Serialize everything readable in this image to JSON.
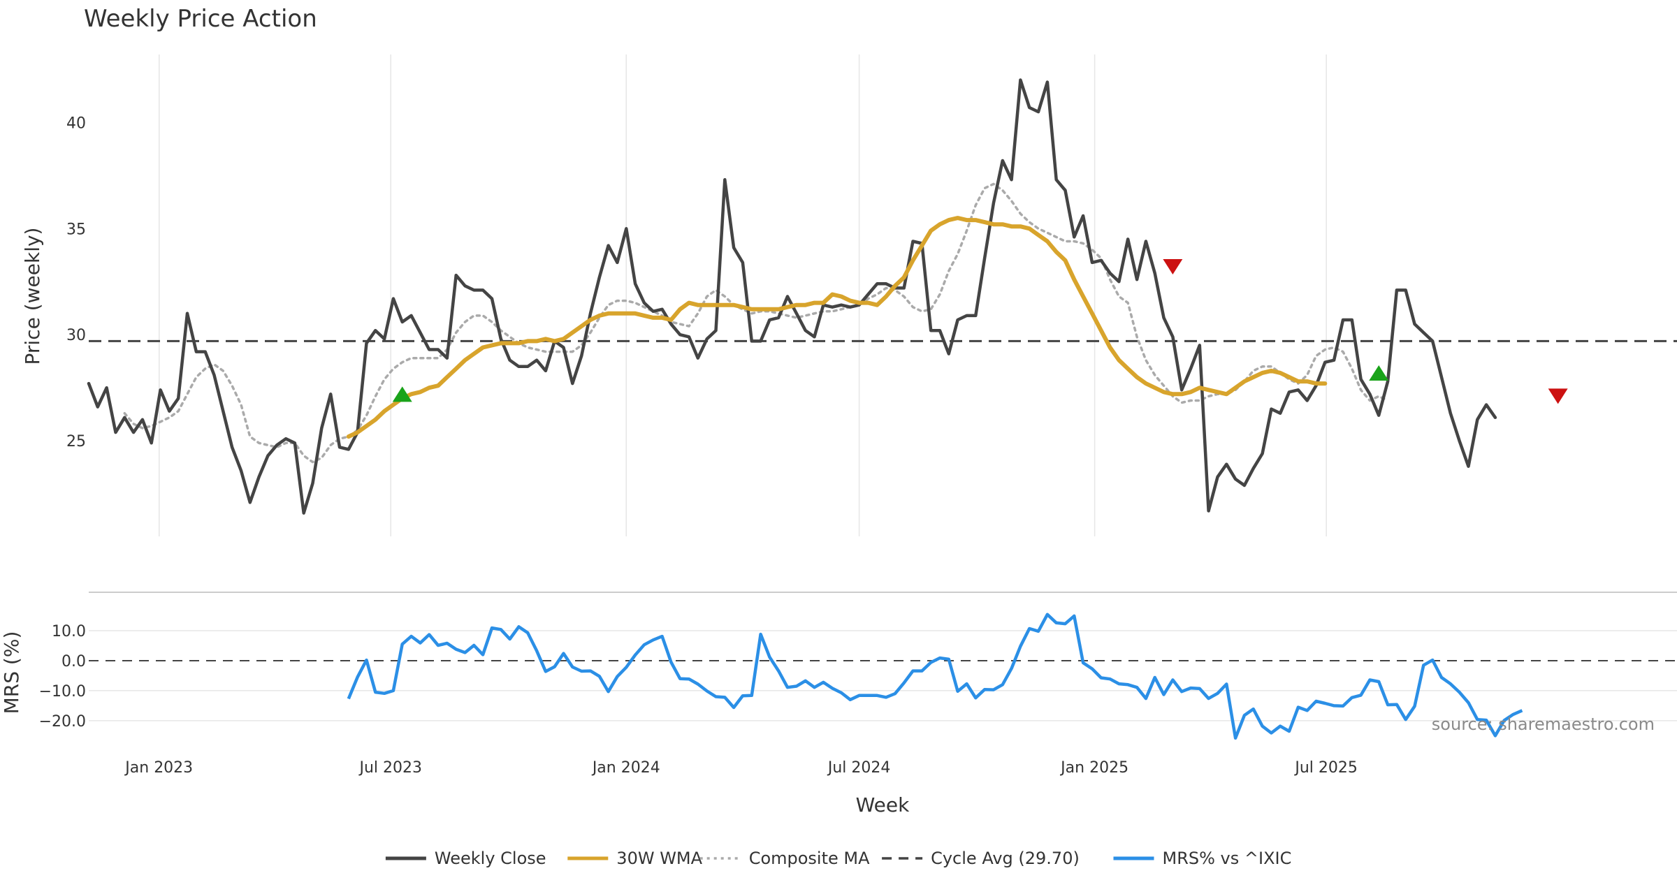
{
  "chart_data": {
    "type": "line",
    "title": "Weekly Price Action",
    "xlabel": "Week",
    "ylabel": "Price (weekly)",
    "ylabel2": "MRS (%)",
    "x_start": "2022-11-07",
    "x_step_days": 7,
    "x_range": [
      "2022-11-07",
      "2026-04-01"
    ],
    "x_ticks": [
      {
        "date": "2023-01-01",
        "label": "Jan 2023"
      },
      {
        "date": "2023-07-01",
        "label": "Jul 2023"
      },
      {
        "date": "2024-01-01",
        "label": "Jan 2024"
      },
      {
        "date": "2024-07-01",
        "label": "Jul 2024"
      },
      {
        "date": "2025-01-01",
        "label": "Jan 2025"
      },
      {
        "date": "2025-07-01",
        "label": "Jul 2025"
      }
    ],
    "ylim": [
      20.5,
      43.2
    ],
    "y_ticks": [
      25,
      30,
      35,
      40
    ],
    "ylim2": [
      -27,
      20
    ],
    "y2_ticks": [
      {
        "value": 10,
        "label": "10.0"
      },
      {
        "value": 0,
        "label": "0.0"
      },
      {
        "value": -10,
        "label": "−10.0"
      },
      {
        "value": -20,
        "label": "−20.0"
      }
    ],
    "cycle_avg": 29.7,
    "source": "source: sharemaestro.com",
    "legend": [
      {
        "label": "Weekly Close",
        "style": "solid",
        "color": "#444444"
      },
      {
        "label": "30W WMA",
        "style": "solid",
        "color": "#d8a42c"
      },
      {
        "label": "Composite MA",
        "style": "dotted",
        "color": "#aaaaaa"
      },
      {
        "label": "Cycle Avg (29.70)",
        "style": "dashed",
        "color": "#444444"
      },
      {
        "label": "MRS% vs ^IXIC",
        "style": "solid",
        "color": "#2b8fe6"
      }
    ],
    "colors": {
      "close": "#444444",
      "wma": "#d8a42c",
      "composite": "#aaaaaa",
      "mrs": "#2b8fe6",
      "buy": "#1aa31a",
      "sell": "#cc1111",
      "grid": "#e6e6e6"
    },
    "series": [
      {
        "name": "Weekly Close",
        "start_index": 0,
        "values": [
          27.7,
          26.6,
          27.5,
          25.4,
          26.1,
          25.4,
          26.0,
          24.9,
          27.4,
          26.4,
          27.0,
          31.0,
          29.2,
          29.2,
          28.1,
          26.4,
          24.7,
          23.6,
          22.1,
          23.3,
          24.3,
          24.8,
          25.1,
          24.9,
          21.6,
          23.0,
          25.6,
          27.2,
          24.7,
          24.6,
          25.4,
          29.6,
          30.2,
          29.8,
          31.7,
          30.6,
          30.9,
          30.1,
          29.3,
          29.3,
          28.9,
          32.8,
          32.3,
          32.1,
          32.1,
          31.7,
          29.8,
          28.8,
          28.5,
          28.5,
          28.8,
          28.3,
          29.7,
          29.4,
          27.7,
          29.0,
          31.0,
          32.7,
          34.2,
          33.4,
          35.0,
          32.4,
          31.5,
          31.1,
          31.2,
          30.5,
          30.0,
          29.9,
          28.9,
          29.8,
          30.2,
          37.3,
          34.1,
          33.4,
          29.7,
          29.7,
          30.7,
          30.8,
          31.8,
          31.0,
          30.2,
          29.9,
          31.4,
          31.3,
          31.4,
          31.3,
          31.4,
          31.9,
          32.4,
          32.4,
          32.2,
          32.2,
          34.4,
          34.3,
          30.2,
          30.2,
          29.1,
          30.7,
          30.9,
          30.9,
          33.6,
          36.2,
          38.2,
          37.3,
          42.0,
          40.7,
          40.5,
          41.9,
          37.3,
          36.8,
          34.6,
          35.6,
          33.4,
          33.5,
          32.9,
          32.5,
          34.5,
          32.6,
          34.4,
          32.9,
          30.8,
          29.9,
          27.4,
          28.4,
          29.5,
          21.7,
          23.3,
          23.9,
          23.2,
          22.9,
          23.7,
          24.4,
          26.5,
          26.3,
          27.3,
          27.4,
          26.9,
          27.6,
          28.7,
          28.8,
          30.7,
          30.7,
          27.9,
          27.2,
          26.2,
          27.8,
          32.1,
          32.1,
          30.5,
          30.1,
          29.7,
          28.0,
          26.3,
          25.0,
          23.8,
          26.0,
          26.7,
          26.1
        ]
      },
      {
        "name": "30W WMA",
        "start_index": 29,
        "values": [
          25.2,
          25.4,
          25.7,
          26.0,
          26.4,
          26.7,
          27.0,
          27.2,
          27.3,
          27.5,
          27.6,
          28.0,
          28.4,
          28.8,
          29.1,
          29.4,
          29.5,
          29.6,
          29.6,
          29.6,
          29.7,
          29.7,
          29.8,
          29.7,
          29.8,
          30.1,
          30.4,
          30.7,
          30.9,
          31.0,
          31.0,
          31.0,
          31.0,
          30.9,
          30.8,
          30.8,
          30.7,
          31.2,
          31.5,
          31.4,
          31.4,
          31.4,
          31.4,
          31.4,
          31.3,
          31.2,
          31.2,
          31.2,
          31.2,
          31.3,
          31.4,
          31.4,
          31.5,
          31.5,
          31.9,
          31.8,
          31.6,
          31.5,
          31.5,
          31.4,
          31.8,
          32.3,
          32.7,
          33.5,
          34.2,
          34.9,
          35.2,
          35.4,
          35.5,
          35.4,
          35.4,
          35.3,
          35.2,
          35.2,
          35.1,
          35.1,
          35.0,
          34.7,
          34.4,
          33.9,
          33.5,
          32.6,
          31.8,
          31.0,
          30.2,
          29.4,
          28.8,
          28.4,
          28.0,
          27.7,
          27.5,
          27.3,
          27.2,
          27.2,
          27.3,
          27.5,
          27.4,
          27.3,
          27.2,
          27.5,
          27.8,
          28.0,
          28.2,
          28.3,
          28.2,
          28.0,
          27.8,
          27.8,
          27.7,
          27.7
        ]
      },
      {
        "name": "Composite MA",
        "start_index": 4,
        "values": [
          26.3,
          25.8,
          25.6,
          25.7,
          25.9,
          26.1,
          26.4,
          27.2,
          28.0,
          28.4,
          28.6,
          28.3,
          27.6,
          26.7,
          25.2,
          24.9,
          24.8,
          24.7,
          24.9,
          24.9,
          24.3,
          24.0,
          24.2,
          24.8,
          25.1,
          25.2,
          25.5,
          26.2,
          27.1,
          27.9,
          28.4,
          28.7,
          28.9,
          28.9,
          28.9,
          28.9,
          29.3,
          30.1,
          30.6,
          30.9,
          30.9,
          30.6,
          30.2,
          29.9,
          29.6,
          29.4,
          29.3,
          29.2,
          29.2,
          29.2,
          29.2,
          29.5,
          30.1,
          30.8,
          31.4,
          31.6,
          31.6,
          31.5,
          31.3,
          31.1,
          30.9,
          30.6,
          30.5,
          30.4,
          31.0,
          31.8,
          32.1,
          31.8,
          31.4,
          31.2,
          31.0,
          31.1,
          31.1,
          31.0,
          30.9,
          30.8,
          30.9,
          31.0,
          31.1,
          31.1,
          31.2,
          31.3,
          31.4,
          31.7,
          31.9,
          32.2,
          32.1,
          31.8,
          31.3,
          31.1,
          31.2,
          31.9,
          33.0,
          33.8,
          34.9,
          36.1,
          36.9,
          37.1,
          36.8,
          36.3,
          35.7,
          35.3,
          35.0,
          34.8,
          34.6,
          34.4,
          34.4,
          34.3,
          34.0,
          33.6,
          32.6,
          31.8,
          31.5,
          29.9,
          28.8,
          28.1,
          27.6,
          27.1,
          26.8,
          26.9,
          26.9,
          27.1,
          27.2,
          27.2,
          27.4,
          27.8,
          28.3,
          28.5,
          28.5,
          28.2,
          27.9,
          27.7,
          28.1,
          29.0,
          29.3,
          29.4,
          29.2,
          28.4,
          27.4,
          26.9,
          27.1,
          26.9
        ]
      }
    ],
    "mrs_series": {
      "name": "MRS% vs ^IXIC",
      "start_index": 29,
      "values": [
        -12.7,
        -5.5,
        0.2,
        -10.5,
        -10.9,
        -10.0,
        5.5,
        8.1,
        5.9,
        8.7,
        5.1,
        5.8,
        3.8,
        2.7,
        5.1,
        2.0,
        10.9,
        10.4,
        7.2,
        11.3,
        9.3,
        3.3,
        -3.6,
        -2.0,
        2.4,
        -2.1,
        -3.5,
        -3.4,
        -5.2,
        -10.3,
        -5.3,
        -2.2,
        1.9,
        5.3,
        6.9,
        8.1,
        -0.5,
        -6.0,
        -6.1,
        -7.8,
        -10.1,
        -12.0,
        -12.2,
        -15.6,
        -11.7,
        -11.6,
        8.8,
        1.2,
        -3.4,
        -8.9,
        -8.5,
        -6.7,
        -8.9,
        -7.2,
        -9.2,
        -10.7,
        -13.0,
        -11.6,
        -11.6,
        -11.6,
        -12.2,
        -11.0,
        -7.4,
        -3.4,
        -3.4,
        -0.6,
        0.9,
        0.5,
        -10.2,
        -7.7,
        -12.4,
        -9.6,
        -9.7,
        -8.0,
        -2.6,
        4.8,
        10.7,
        9.8,
        15.4,
        12.6,
        12.3,
        14.9,
        -0.7,
        -2.7,
        -5.7,
        -6.1,
        -7.7,
        -8.0,
        -8.9,
        -12.6,
        -5.6,
        -11.3,
        -6.4,
        -10.3,
        -9.1,
        -9.3,
        -12.6,
        -10.9,
        -7.8,
        -25.8,
        -18.2,
        -16.1,
        -21.8,
        -24.1,
        -21.8,
        -23.5,
        -15.5,
        -16.6,
        -13.5,
        -14.2,
        -15.0,
        -15.1,
        -12.3,
        -11.5,
        -6.4,
        -7.0,
        -14.7,
        -14.6,
        -19.6,
        -15.2,
        -1.5,
        0.2,
        -5.6,
        -7.7,
        -10.5,
        -14.0,
        -19.6,
        -19.8,
        -25.0,
        -19.9,
        -17.9,
        -16.6
      ]
    },
    "buy_signals": [
      {
        "index": 35,
        "value": 27.2
      },
      {
        "index": 144,
        "value": 28.2
      }
    ],
    "sell_signals": [
      {
        "index": 121,
        "value": 33.2
      },
      {
        "index": 164,
        "value": 27.1
      }
    ]
  }
}
